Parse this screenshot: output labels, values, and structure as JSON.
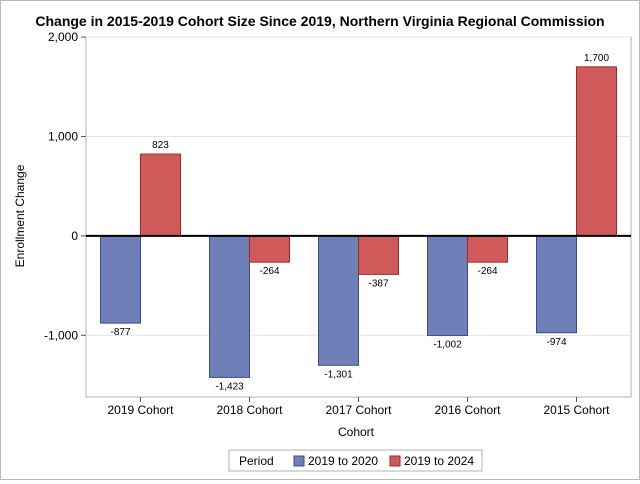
{
  "chart_data": {
    "type": "bar",
    "title": "Change in 2015-2019 Cohort Size Since 2019, Northern Virginia Regional Commission",
    "xlabel": "Cohort",
    "ylabel": "Enrollment Change",
    "categories": [
      "2019 Cohort",
      "2018 Cohort",
      "2017 Cohort",
      "2016 Cohort",
      "2015 Cohort"
    ],
    "series": [
      {
        "name": "2019 to 2020",
        "values": [
          -877,
          -1423,
          -1301,
          -1002,
          -974
        ],
        "labels": [
          "-877",
          "-1,423",
          "-1,301",
          "-1,002",
          "-974"
        ],
        "color": "#6f7fb8",
        "stroke": "#3b4a8c"
      },
      {
        "name": "2019 to 2024",
        "values": [
          823,
          -264,
          -387,
          -264,
          1700
        ],
        "labels": [
          "823",
          "-264",
          "-387",
          "-264",
          "1,700"
        ],
        "color": "#d05a5a",
        "stroke": "#9c2a2a"
      }
    ],
    "ylim": [
      -1620,
      2000
    ],
    "yticks": [
      -1000,
      0,
      1000,
      2000
    ],
    "ytick_labels": [
      "-1,000",
      "0",
      "1,000",
      "2,000"
    ],
    "grid": true,
    "legend_position": "bottom",
    "legend_title": "Period"
  }
}
